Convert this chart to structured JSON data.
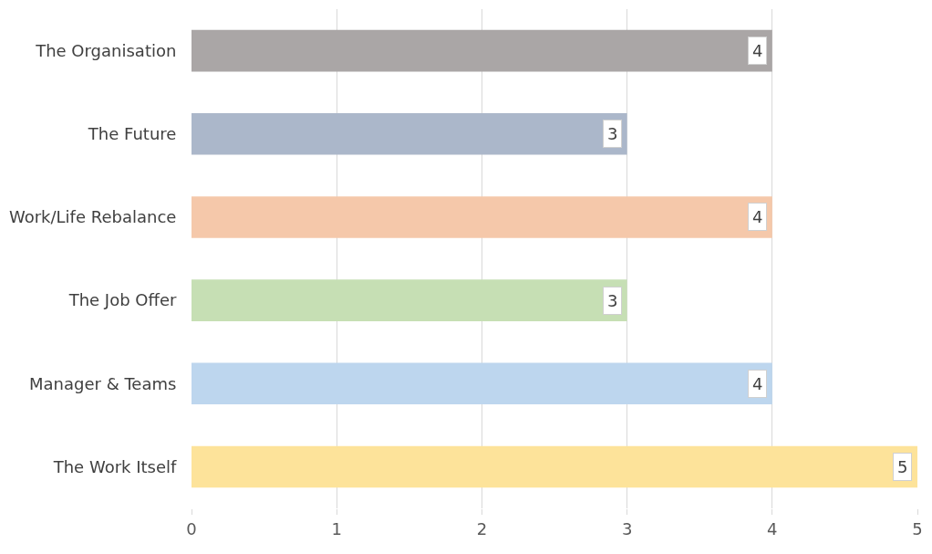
{
  "chart_data": {
    "type": "bar",
    "orientation": "horizontal",
    "categories": [
      "The Organisation",
      "The Future",
      "Work/Life Rebalance",
      "The Job Offer",
      "Manager & Teams",
      "The Work Itself"
    ],
    "values": [
      4,
      3,
      4,
      3,
      4,
      5
    ],
    "colors": [
      "#aaa6a6",
      "#abb7ca",
      "#f5c8aa",
      "#c6dfb4",
      "#bdd6ee",
      "#fde39a"
    ],
    "xlim": [
      0,
      5
    ],
    "xticks": [
      0,
      1,
      2,
      3,
      4,
      5
    ],
    "grid": "x",
    "data_labels": true
  }
}
